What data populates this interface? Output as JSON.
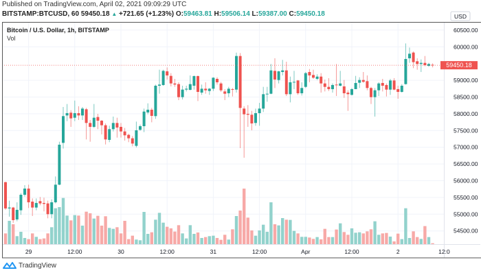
{
  "header": {
    "published": "Published on TradingView.com, April 02, 2021 09:09:29 UTC",
    "symbol": "BITSTAMP:BTCUSD, 60",
    "last": "59450.18",
    "arrow_icon": "triangle-up-icon",
    "change": "+721.65 (+1.23%)",
    "o_label": "O:",
    "o": "59463.81",
    "h_label": "H:",
    "h": "59506.14",
    "l_label": "L:",
    "l": "59387.00",
    "c_label": "C:",
    "c": "59450.18"
  },
  "footer": {
    "brand": "TradingView"
  },
  "colors": {
    "up": "#26a69a",
    "down": "#ef5350",
    "up_vol": "#92d2cc",
    "down_vol": "#f7a9a7",
    "grid": "#f0f3fa",
    "price_label": "#ef5350"
  },
  "chart_data": {
    "type": "candlestick",
    "title": "Bitcoin / U.S. Dollar, 1h, BITSTAMP",
    "volume_label": "Vol",
    "currency_badge": "USD",
    "last_price": 59450.18,
    "last_price_label": "59450.18",
    "ylim": [
      54000,
      60700
    ],
    "y_ticks": [
      "60500.00",
      "60000.00",
      "59000.00",
      "58500.00",
      "58000.00",
      "57500.00",
      "57000.00",
      "56500.00",
      "56000.00",
      "55500.00",
      "55000.00",
      "54500.00"
    ],
    "y_tick_values": [
      60500,
      60000,
      59000,
      58500,
      58000,
      57500,
      57000,
      56500,
      56000,
      55500,
      55000,
      54500
    ],
    "x_ticks": [
      {
        "label": "29",
        "index": 6
      },
      {
        "label": "12:00",
        "index": 18
      },
      {
        "label": "30",
        "index": 30
      },
      {
        "label": "12:00",
        "index": 42
      },
      {
        "label": "31",
        "index": 54
      },
      {
        "label": "12:00",
        "index": 66
      },
      {
        "label": "Apr",
        "index": 78
      },
      {
        "label": "12:00",
        "index": 90
      },
      {
        "label": "2",
        "index": 102
      },
      {
        "label": "12:0",
        "index": 114
      }
    ],
    "grid": true,
    "ohlc": [
      [
        55956,
        55970,
        55130,
        55171
      ],
      [
        55171,
        55403,
        54925,
        55198
      ],
      [
        55198,
        55218,
        54740,
        54822
      ],
      [
        54843,
        55355,
        54788,
        55130
      ],
      [
        55116,
        55628,
        54979,
        55580
      ],
      [
        55580,
        55867,
        55526,
        55765
      ],
      [
        55765,
        55881,
        55184,
        55355
      ],
      [
        55375,
        55471,
        54945,
        55198
      ],
      [
        55198,
        55471,
        55116,
        55335
      ],
      [
        55389,
        55512,
        55266,
        55321
      ],
      [
        55335,
        55492,
        55082,
        55307
      ],
      [
        55321,
        55403,
        54877,
        55000
      ],
      [
        55000,
        55444,
        54877,
        55355
      ],
      [
        55355,
        56127,
        55321,
        55881
      ],
      [
        55881,
        57165,
        55867,
        57076
      ],
      [
        57131,
        58203,
        56960,
        57930
      ],
      [
        57950,
        58292,
        57780,
        58019
      ],
      [
        58032,
        58107,
        57609,
        57862
      ],
      [
        57882,
        58394,
        57780,
        58019
      ],
      [
        58019,
        58224,
        57814,
        57950
      ],
      [
        57950,
        58203,
        57814,
        58155
      ],
      [
        58135,
        58176,
        57233,
        57725
      ],
      [
        57725,
        57814,
        57165,
        57609
      ],
      [
        57609,
        58292,
        57575,
        57882
      ],
      [
        57903,
        57998,
        57541,
        57793
      ],
      [
        57793,
        57814,
        57384,
        57657
      ],
      [
        57657,
        57711,
        57083,
        57233
      ],
      [
        57220,
        57643,
        57151,
        57541
      ],
      [
        57540,
        57916,
        57472,
        57725
      ],
      [
        57725,
        57882,
        57288,
        57588
      ],
      [
        57609,
        57725,
        57288,
        57472
      ],
      [
        57472,
        57575,
        57199,
        57356
      ],
      [
        57370,
        57404,
        57151,
        57267
      ],
      [
        57267,
        57335,
        57028,
        57110
      ],
      [
        57042,
        57766,
        56994,
        57506
      ],
      [
        57520,
        57677,
        57493,
        57629
      ],
      [
        57629,
        58155,
        57452,
        58066
      ],
      [
        58039,
        58312,
        57984,
        58121
      ],
      [
        58121,
        58176,
        57745,
        57937
      ],
      [
        57930,
        58872,
        57848,
        58838
      ],
      [
        58838,
        59316,
        58599,
        58872
      ],
      [
        58859,
        59316,
        58838,
        59282
      ],
      [
        59268,
        59384,
        59022,
        59145
      ],
      [
        59132,
        59214,
        58818,
        58906
      ],
      [
        58906,
        59043,
        58804,
        58872
      ],
      [
        58886,
        58941,
        58408,
        58497
      ],
      [
        58497,
        58838,
        58428,
        58722
      ],
      [
        58722,
        58838,
        58667,
        58749
      ],
      [
        58715,
        59145,
        58702,
        58886
      ],
      [
        58838,
        59145,
        58722,
        59125
      ],
      [
        59125,
        59145,
        58380,
        58654
      ],
      [
        58633,
        58872,
        58565,
        58749
      ],
      [
        58749,
        58941,
        58599,
        58701
      ],
      [
        58681,
        58770,
        58565,
        58749
      ],
      [
        58749,
        59091,
        58681,
        59077
      ],
      [
        59043,
        59091,
        58872,
        58941
      ],
      [
        58906,
        58954,
        58654,
        58701
      ],
      [
        58667,
        58736,
        58408,
        58599
      ],
      [
        58613,
        58804,
        58497,
        58749
      ],
      [
        58736,
        58770,
        58517,
        58722
      ],
      [
        58722,
        59828,
        58633,
        59726
      ],
      [
        59726,
        59815,
        56973,
        58175
      ],
      [
        58155,
        58223,
        56687,
        57984
      ],
      [
        57998,
        58258,
        57609,
        57971
      ],
      [
        57971,
        58087,
        57506,
        57711
      ],
      [
        57725,
        58155,
        57643,
        58019
      ],
      [
        58019,
        58326,
        57643,
        58155
      ],
      [
        58155,
        58804,
        58053,
        58585
      ],
      [
        58585,
        58804,
        58360,
        58599
      ],
      [
        58599,
        59487,
        58585,
        59296
      ],
      [
        59282,
        59658,
        58770,
        59023
      ],
      [
        59009,
        59282,
        58906,
        59268
      ],
      [
        59248,
        59610,
        59146,
        59296
      ],
      [
        59296,
        59555,
        58531,
        58585
      ],
      [
        58585,
        59111,
        58340,
        58941
      ],
      [
        58941,
        59282,
        58736,
        58954
      ],
      [
        58995,
        59009,
        58565,
        58613
      ],
      [
        58613,
        58941,
        58545,
        58770
      ],
      [
        58804,
        59248,
        58770,
        59214
      ],
      [
        59248,
        59337,
        58941,
        59146
      ],
      [
        59159,
        59316,
        59043,
        59077
      ],
      [
        59043,
        59180,
        59009,
        59111
      ],
      [
        59111,
        59214,
        58633,
        58906
      ],
      [
        58906,
        59023,
        58667,
        58804
      ],
      [
        58804,
        59064,
        58681,
        58736
      ],
      [
        58736,
        58906,
        58633,
        58859
      ],
      [
        58872,
        59487,
        58531,
        58852
      ],
      [
        58838,
        59282,
        58818,
        58906
      ],
      [
        58818,
        59009,
        58476,
        58613
      ],
      [
        58633,
        58702,
        58087,
        58585
      ],
      [
        58565,
        58770,
        58545,
        58736
      ],
      [
        58736,
        59132,
        58736,
        58920
      ],
      [
        58927,
        59091,
        58770,
        59009
      ],
      [
        59009,
        59248,
        58927,
        58954
      ],
      [
        58975,
        59146,
        58702,
        58770
      ],
      [
        58770,
        58804,
        58292,
        58497
      ],
      [
        58497,
        58770,
        57916,
        58702
      ],
      [
        58702,
        58941,
        58531,
        58906
      ],
      [
        58920,
        59043,
        58667,
        58838
      ],
      [
        58859,
        58906,
        58517,
        58722
      ],
      [
        58722,
        59043,
        58565,
        58995
      ],
      [
        58995,
        59064,
        58702,
        58722
      ],
      [
        58736,
        58838,
        58449,
        58654
      ],
      [
        58654,
        58886,
        58633,
        58838
      ],
      [
        58886,
        60102,
        58872,
        59637
      ],
      [
        59658,
        59979,
        59521,
        59794
      ],
      [
        59829,
        59863,
        59364,
        59542
      ],
      [
        59569,
        59658,
        59316,
        59487
      ],
      [
        59487,
        59624,
        59248,
        59521
      ],
      [
        59521,
        59726,
        59419,
        59453
      ],
      [
        59432,
        59521,
        59405,
        59487
      ],
      [
        59463.81,
        59506.14,
        59387.0,
        59450.18
      ]
    ],
    "volume_relative": [
      47,
      102,
      87,
      35,
      54,
      27,
      22,
      47,
      32,
      22,
      25,
      47,
      74,
      157,
      162,
      202,
      125,
      104,
      127,
      125,
      81,
      142,
      135,
      112,
      124,
      81,
      122,
      71,
      67,
      74,
      47,
      102,
      22,
      37,
      20,
      17,
      141,
      45,
      52,
      107,
      137,
      94,
      76,
      69,
      55,
      83,
      47,
      25,
      83,
      45,
      51,
      27,
      31,
      35,
      37,
      27,
      19,
      41,
      20,
      65,
      123,
      147,
      243,
      116,
      60,
      37,
      60,
      85,
      54,
      183,
      87,
      82,
      114,
      107,
      106,
      58,
      47,
      32,
      32,
      29,
      23,
      31,
      21,
      67,
      31,
      31,
      64,
      91,
      53,
      41,
      69,
      50,
      52,
      47,
      56,
      65,
      100,
      41,
      47,
      49,
      33,
      12,
      46,
      22,
      157,
      27,
      56,
      31,
      23,
      79,
      31,
      4
    ]
  }
}
